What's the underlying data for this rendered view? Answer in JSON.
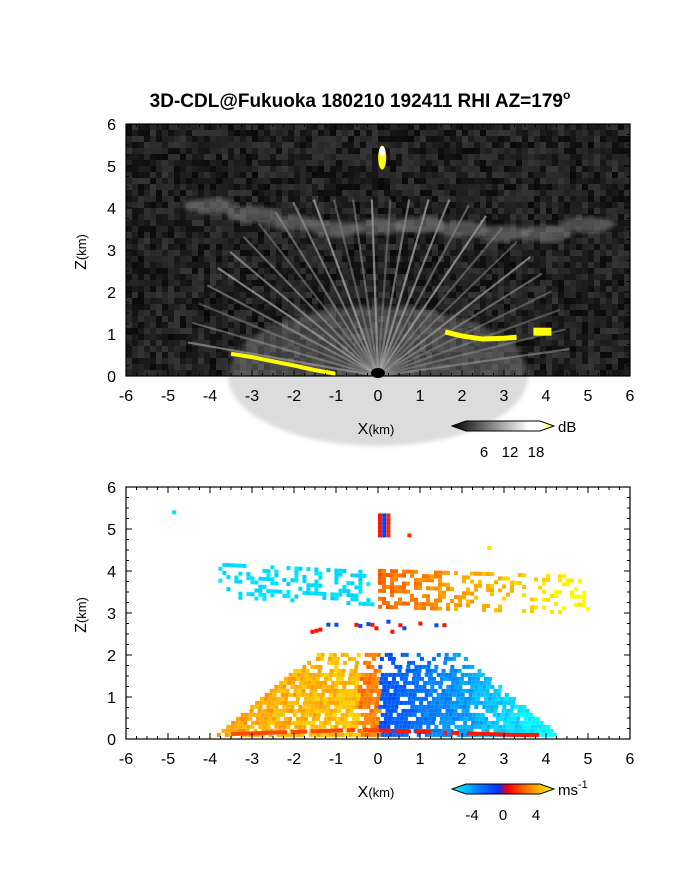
{
  "figure": {
    "title_main": "3D-CDL@Fukuoka 180210 192411 RHI AZ=179",
    "title_degree": "o"
  },
  "chart_data": [
    {
      "type": "heatmap",
      "panel": "top",
      "quantity": "Backscatter intensity",
      "xlabel_main": "X",
      "xlabel_unit": "(km)",
      "ylabel_main": "Z",
      "ylabel_unit": "(km)",
      "xlim": [
        -6,
        6
      ],
      "ylim": [
        0,
        6
      ],
      "xticks": [
        "-6",
        "-5",
        "-4",
        "-3",
        "-2",
        "-1",
        "0",
        "1",
        "2",
        "3",
        "4",
        "5",
        "6"
      ],
      "yticks": [
        "0",
        "1",
        "2",
        "3",
        "4",
        "5",
        "6"
      ],
      "background": "#0b0b0b",
      "colorbar": {
        "unit": "dB",
        "ticks": [
          "6",
          "12",
          "18"
        ],
        "range": [
          0,
          21
        ],
        "colors": [
          "#000000",
          "#ffffff",
          "#ffff00"
        ]
      },
      "features": [
        {
          "name": "fan-echo",
          "origin": [
            0,
            0
          ],
          "x_span": [
            -4.4,
            4.8
          ],
          "z_max": 4.3,
          "value_db": 10
        },
        {
          "name": "cloud-layer",
          "x_span": [
            -4.0,
            5.4
          ],
          "z_span": [
            3.2,
            4.4
          ],
          "value_db": 9
        },
        {
          "name": "echo-top",
          "x": 0.1,
          "z": 5.2,
          "value_db": 20
        },
        {
          "name": "yellow-left",
          "x_span": [
            -3.5,
            -0.8
          ],
          "z_span": [
            0.0,
            0.55
          ],
          "value_db": 20
        },
        {
          "name": "yellow-right",
          "x_span": [
            1.6,
            4.0
          ],
          "z_span": [
            0.8,
            1.1
          ],
          "value_db": 20
        }
      ]
    },
    {
      "type": "heatmap",
      "panel": "bottom",
      "quantity": "Doppler velocity",
      "xlabel_main": "X",
      "xlabel_unit": "(km)",
      "ylabel_main": "Z",
      "ylabel_unit": "(km)",
      "xlim": [
        -6,
        6
      ],
      "ylim": [
        0,
        6
      ],
      "xticks": [
        "-6",
        "-5",
        "-4",
        "-3",
        "-2",
        "-1",
        "0",
        "1",
        "2",
        "3",
        "4",
        "5",
        "6"
      ],
      "yticks": [
        "0",
        "1",
        "2",
        "3",
        "4",
        "5",
        "6"
      ],
      "colorbar": {
        "unit": "ms",
        "unit_exp": "-1",
        "ticks": [
          "-4",
          "0",
          "4"
        ],
        "range": [
          -5,
          5
        ],
        "colors": [
          "#00ffff",
          "#0060ff",
          "#ff0000",
          "#ff8000",
          "#ffff00"
        ]
      },
      "features": [
        {
          "name": "low-level-toward",
          "x_span": [
            -3.8,
            0.0
          ],
          "z_span": [
            0.0,
            2.0
          ],
          "velocity_ms": 3.5
        },
        {
          "name": "low-level-away",
          "x_span": [
            0.0,
            4.3
          ],
          "z_span": [
            0.0,
            2.0
          ],
          "velocity_ms": -3.5
        },
        {
          "name": "mid-layer-left",
          "x_span": [
            -3.8,
            -0.1
          ],
          "z_span": [
            3.2,
            4.2
          ],
          "velocity_ms": -4.2
        },
        {
          "name": "mid-layer-right",
          "x_span": [
            0.0,
            5.0
          ],
          "z_span": [
            3.1,
            4.0
          ],
          "velocity_ms": 3.0
        },
        {
          "name": "streaks",
          "x_span": [
            -1.8,
            1.6
          ],
          "z_span": [
            2.4,
            2.8
          ],
          "velocity_ms": -1.5
        },
        {
          "name": "echo-top",
          "x": 0.1,
          "z": 5.0,
          "velocity_ms": 1.0
        },
        {
          "name": "surface-streak",
          "x_span": [
            -3.5,
            3.8
          ],
          "z_span": [
            0.0,
            0.5
          ],
          "velocity_ms": 2.5
        }
      ]
    }
  ]
}
